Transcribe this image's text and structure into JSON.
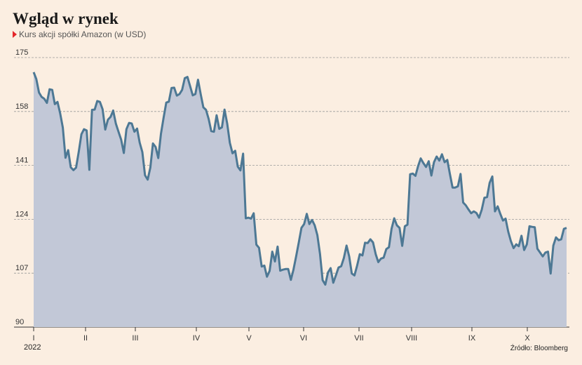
{
  "header": {
    "title": "Wgląd w rynek",
    "subtitle": "Kurs akcji spółki Amazon (w USD)",
    "year": "2022",
    "source": "Źródło: Bloomberg"
  },
  "colors": {
    "background": "#fbeee1",
    "line": "#4d7894",
    "area": "#c2c8d7",
    "marker": "#e4262a"
  },
  "chart_data": {
    "type": "area",
    "title": "Wgląd w rynek",
    "subtitle": "Kurs akcji spółki Amazon (w USD)",
    "xlabel": "",
    "ylabel": "",
    "ylim": [
      90,
      175
    ],
    "yticks": [
      90,
      107,
      124,
      141,
      158,
      175
    ],
    "grid": true,
    "months": [
      "I",
      "II",
      "III",
      "IV",
      "V",
      "VI",
      "VII",
      "VIII",
      "IX",
      "X"
    ],
    "values": [
      170.4,
      168.2,
      164.0,
      162.6,
      162.0,
      160.7,
      165.0,
      164.8,
      160.3,
      161.0,
      157.4,
      152.9,
      143.4,
      145.8,
      140.4,
      139.5,
      140.3,
      145.3,
      150.8,
      152.4,
      152.0,
      139.6,
      158.5,
      158.6,
      161.3,
      161.0,
      158.7,
      152.3,
      155.4,
      156.3,
      158.3,
      154.2,
      151.6,
      149.1,
      144.9,
      152.4,
      154.4,
      154.2,
      151.6,
      152.6,
      148.2,
      145.2,
      137.9,
      136.5,
      140.3,
      147.9,
      146.8,
      143.3,
      150.9,
      156.0,
      160.8,
      161.1,
      165.4,
      165.5,
      163.0,
      163.5,
      164.8,
      168.5,
      168.9,
      166.0,
      163.1,
      163.5,
      168.0,
      163.5,
      159.3,
      158.5,
      155.6,
      151.8,
      151.6,
      156.8,
      152.5,
      153.0,
      158.6,
      154.2,
      148.1,
      144.8,
      145.6,
      140.6,
      139.4,
      144.7,
      124.3,
      124.5,
      124.2,
      125.9,
      116.0,
      115.0,
      109.1,
      109.4,
      105.9,
      107.7,
      113.8,
      110.7,
      115.4,
      107.8,
      108.1,
      108.3,
      108.3,
      104.9,
      108.1,
      112.3,
      116.7,
      121.3,
      122.5,
      125.7,
      122.5,
      123.8,
      122.1,
      119.0,
      113.0,
      104.8,
      103.4,
      107.2,
      108.6,
      104.0,
      106.3,
      108.8,
      109.2,
      111.8,
      115.7,
      112.3,
      106.9,
      106.3,
      109.4,
      113.0,
      112.6,
      116.6,
      116.5,
      117.7,
      116.7,
      113.0,
      110.5,
      111.6,
      111.9,
      114.6,
      115.2,
      121.0,
      124.3,
      122.1,
      121.3,
      115.6,
      121.8,
      122.3,
      138.2,
      138.4,
      137.7,
      140.8,
      143.2,
      141.7,
      140.5,
      142.3,
      137.8,
      142.0,
      143.8,
      142.5,
      144.5,
      142.0,
      142.7,
      138.3,
      134.0,
      134.0,
      134.4,
      138.3,
      129.3,
      128.4,
      127.1,
      125.9,
      126.5,
      126.0,
      124.5,
      127.0,
      130.8,
      131.0,
      135.5,
      137.5,
      126.5,
      128.1,
      125.7,
      123.6,
      124.2,
      120.1,
      117.1,
      114.9,
      116.1,
      115.5,
      118.8,
      114.3,
      116.1,
      121.8,
      121.6,
      121.5,
      114.7,
      113.5,
      112.3,
      113.5,
      113.8,
      106.9,
      115.7,
      118.3,
      117.4,
      117.7,
      121.0,
      121.3
    ]
  }
}
